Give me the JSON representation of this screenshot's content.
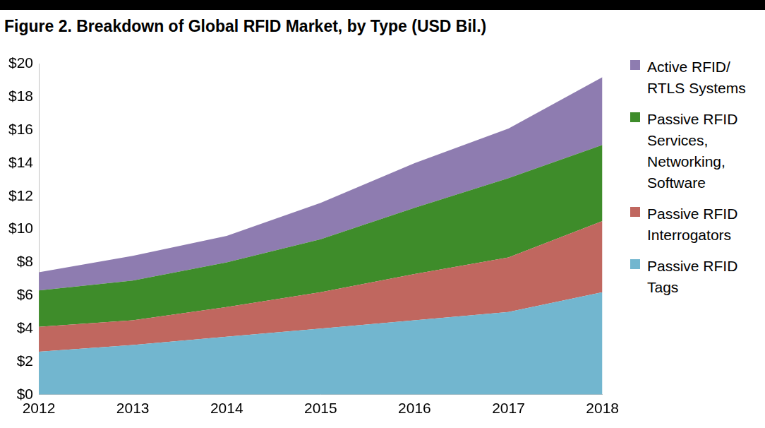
{
  "chart_data": {
    "type": "area",
    "title": "Figure 2. Breakdown of Global RFID Market, by Type (USD Bil.)",
    "categories": [
      "2012",
      "2013",
      "2014",
      "2015",
      "2016",
      "2017",
      "2018"
    ],
    "series": [
      {
        "name": "Passive RFID Tags",
        "color": "#72b6cf",
        "values": [
          2.6,
          3.0,
          3.5,
          4.0,
          4.5,
          5.0,
          6.2
        ]
      },
      {
        "name": "Passive RFID Interrogators",
        "color": "#c0675f",
        "values": [
          1.5,
          1.5,
          1.8,
          2.2,
          2.8,
          3.3,
          4.3
        ]
      },
      {
        "name": "Passive RFID Services, Networking, Software",
        "color": "#3e8c2a",
        "values": [
          2.2,
          2.4,
          2.7,
          3.2,
          4.0,
          4.8,
          4.6
        ]
      },
      {
        "name": "Active RFID/ RTLS Systems",
        "color": "#8e7cb0",
        "values": [
          1.1,
          1.5,
          1.6,
          2.2,
          2.7,
          3.0,
          4.1
        ]
      }
    ],
    "ylim": [
      0,
      20
    ],
    "yticks": [
      {
        "value": 0,
        "label": "$0"
      },
      {
        "value": 2,
        "label": "$2"
      },
      {
        "value": 4,
        "label": "$4"
      },
      {
        "value": 6,
        "label": "$6"
      },
      {
        "value": 8,
        "label": "$8"
      },
      {
        "value": 10,
        "label": "$10"
      },
      {
        "value": 12,
        "label": "$12"
      },
      {
        "value": 14,
        "label": "$14"
      },
      {
        "value": 16,
        "label": "$16"
      },
      {
        "value": 18,
        "label": "$18"
      },
      {
        "value": 20,
        "label": "$20"
      }
    ],
    "grid": false,
    "stacked": true,
    "legend": "right"
  }
}
